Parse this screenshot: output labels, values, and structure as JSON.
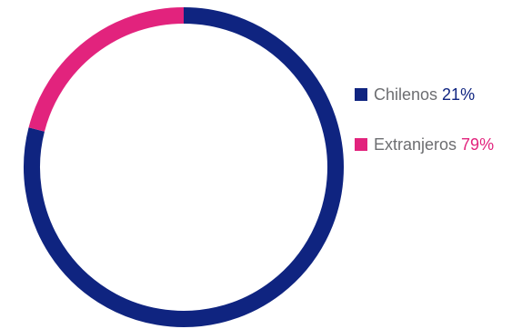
{
  "chart_data": {
    "type": "pie",
    "title": "",
    "legend_position": "right",
    "series": [
      {
        "name": "Chilenos",
        "value": 21,
        "label": "21%",
        "color": "#0f2480"
      },
      {
        "name": "Extranjeros",
        "value": 79,
        "label": "79%",
        "color": "#e2237d"
      }
    ]
  }
}
